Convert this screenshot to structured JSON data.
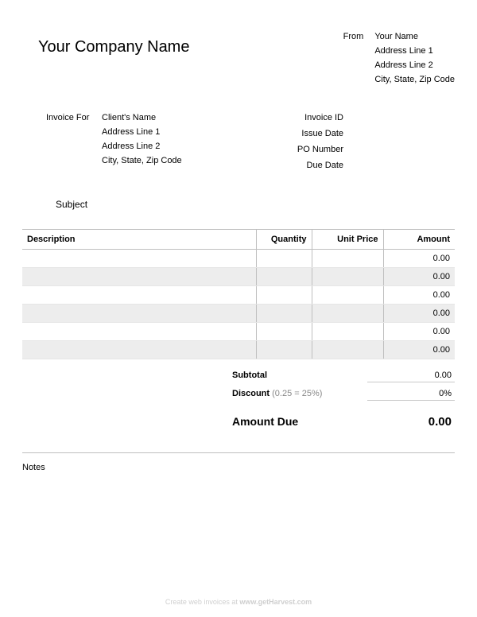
{
  "company_name": "Your Company Name",
  "from": {
    "label": "From",
    "lines": [
      "Your Name",
      "Address Line 1",
      "Address Line 2",
      "City, State, Zip Code"
    ]
  },
  "invoice_for": {
    "label": "Invoice For",
    "lines": [
      "Client's Name",
      "Address Line 1",
      "Address Line 2",
      "City, State, Zip Code"
    ]
  },
  "meta_labels": {
    "invoice_id": "Invoice ID",
    "issue_date": "Issue Date",
    "po_number": "PO Number",
    "due_date": "Due Date"
  },
  "subject_label": "Subject",
  "table": {
    "headers": {
      "description": "Description",
      "quantity": "Quantity",
      "unit_price": "Unit Price",
      "amount": "Amount"
    },
    "rows": [
      {
        "description": "",
        "quantity": "",
        "unit_price": "",
        "amount": "0.00"
      },
      {
        "description": "",
        "quantity": "",
        "unit_price": "",
        "amount": "0.00"
      },
      {
        "description": "",
        "quantity": "",
        "unit_price": "",
        "amount": "0.00"
      },
      {
        "description": "",
        "quantity": "",
        "unit_price": "",
        "amount": "0.00"
      },
      {
        "description": "",
        "quantity": "",
        "unit_price": "",
        "amount": "0.00"
      },
      {
        "description": "",
        "quantity": "",
        "unit_price": "",
        "amount": "0.00"
      }
    ],
    "alt_row_bg": "#ededed",
    "border_color": "#bfbfbf"
  },
  "totals": {
    "subtotal_label": "Subtotal",
    "subtotal_value": "0.00",
    "discount_label": "Discount",
    "discount_hint": "(0.25 = 25%)",
    "discount_value": "0%",
    "amount_due_label": "Amount Due",
    "amount_due_value": "0.00"
  },
  "notes_label": "Notes",
  "footer": {
    "text": "Create web invoices at ",
    "site": "www.getHarvest.com"
  },
  "colors": {
    "text": "#000000",
    "muted": "#888888",
    "rule": "#bfbfbf",
    "footer": "#cfcfcf",
    "bg": "#ffffff"
  }
}
